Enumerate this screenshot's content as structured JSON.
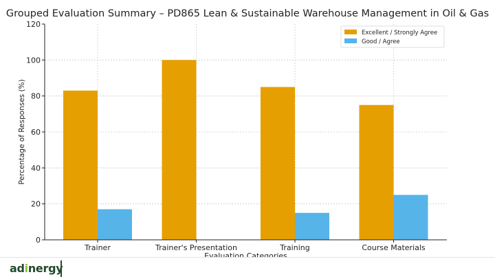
{
  "chart_data": {
    "type": "bar",
    "title": "Grouped Evaluation Summary – PD865 Lean & Sustainable Warehouse Management in Oil & Gas",
    "xlabel": "Evaluation Categories",
    "ylabel": "Percentage of Responses (%)",
    "categories": [
      "Trainer",
      "Trainer's Presentation",
      "Training",
      "Course Materials"
    ],
    "series": [
      {
        "name": "Excellent / Strongly Agree",
        "values": [
          83,
          100,
          85,
          75
        ],
        "color": "#E69F00"
      },
      {
        "name": "Good / Agree",
        "values": [
          17,
          0,
          15,
          25
        ],
        "color": "#56B4E9"
      }
    ],
    "ylim": [
      0,
      120
    ],
    "yticks": [
      0,
      20,
      40,
      60,
      80,
      100,
      120
    ],
    "grid": true,
    "legend": "top-right"
  },
  "footer": {
    "logo": "adinergy"
  }
}
